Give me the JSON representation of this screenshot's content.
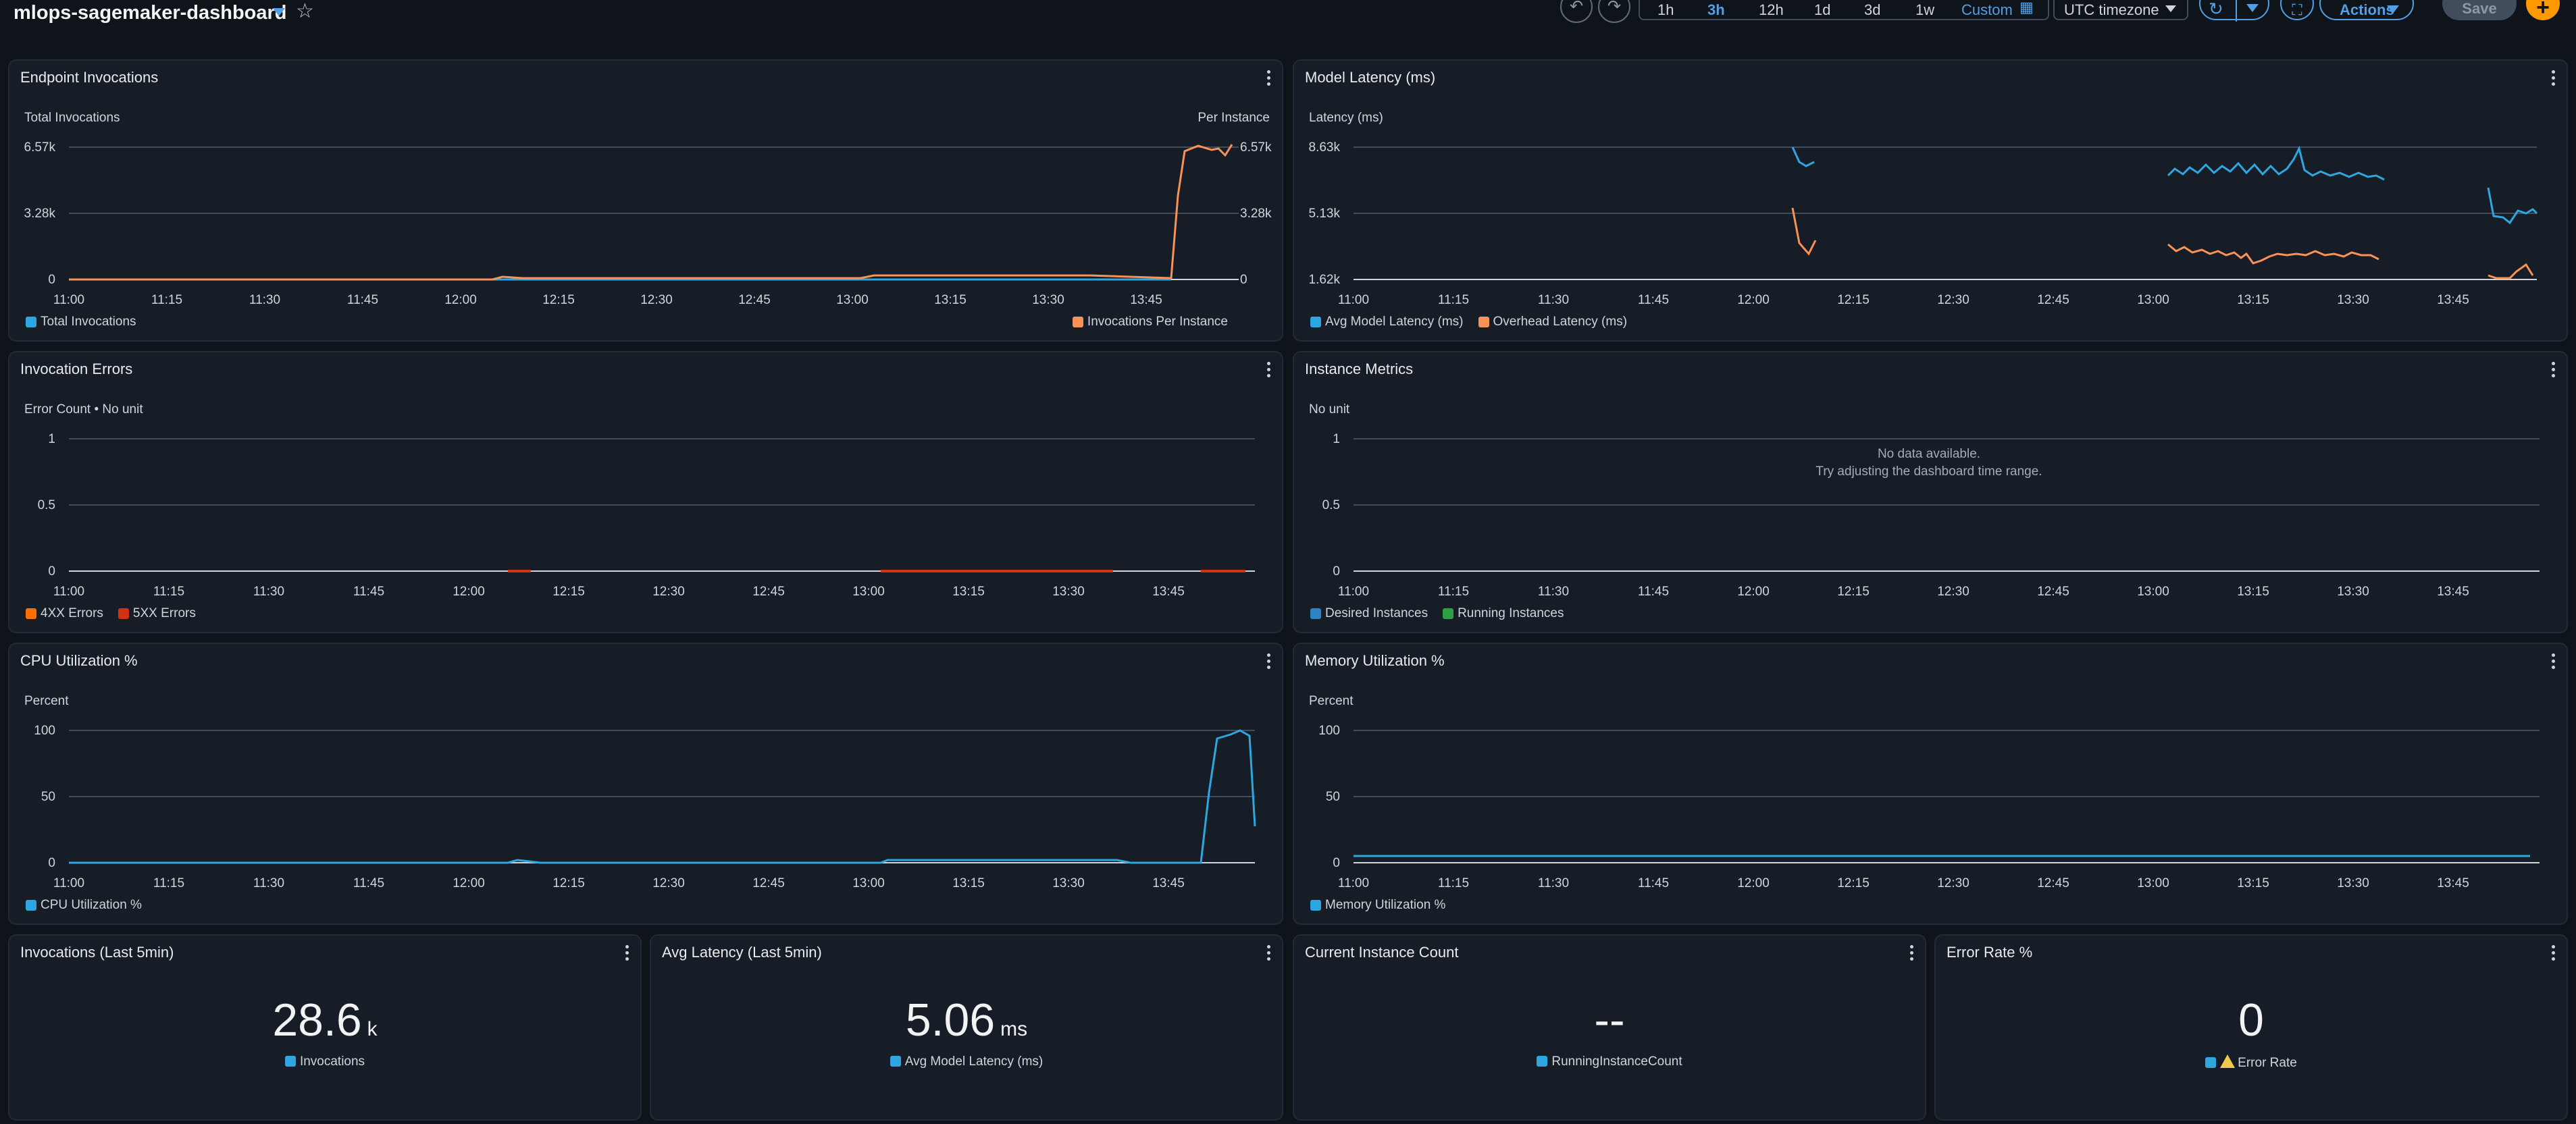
{
  "header": {
    "dashboard_title": "mlops-sagemaker-dashboard",
    "time_ranges": [
      "1h",
      "3h",
      "12h",
      "1d",
      "3d",
      "1w"
    ],
    "active_range": "3h",
    "custom_label": "Custom",
    "timezone": "UTC timezone",
    "actions_label": "Actions",
    "save_label": "Save",
    "add_label": "+"
  },
  "x_ticks": [
    "11:00",
    "11:15",
    "11:30",
    "11:45",
    "12:00",
    "12:15",
    "12:30",
    "12:45",
    "13:00",
    "13:15",
    "13:30",
    "13:45"
  ],
  "panels": {
    "invocations": {
      "title": "Endpoint Invocations",
      "left_unit": "Total Invocations",
      "right_unit": "Per Instance",
      "y_ticks": [
        "6.57k",
        "3.28k",
        "0"
      ],
      "right_ticks": [
        "6.57k",
        "3.28k",
        "0"
      ],
      "legend": [
        "Total Invocations",
        "Invocations Per Instance"
      ]
    },
    "latency": {
      "title": "Model Latency (ms)",
      "left_unit": "Latency (ms)",
      "y_ticks": [
        "8.63k",
        "5.13k",
        "1.62k"
      ],
      "legend": [
        "Avg Model Latency (ms)",
        "Overhead Latency (ms)"
      ]
    },
    "errors": {
      "title": "Invocation Errors",
      "left_unit": "Error Count • No unit",
      "y_ticks": [
        "1",
        "0.5",
        "0"
      ],
      "legend": [
        "4XX Errors",
        "5XX Errors"
      ]
    },
    "instances": {
      "title": "Instance Metrics",
      "left_unit": "No unit",
      "y_ticks": [
        "1",
        "0.5",
        "0"
      ],
      "no_data_line1": "No data available.",
      "no_data_line2": "Try adjusting the dashboard time range.",
      "legend": [
        "Desired Instances",
        "Running Instances"
      ]
    },
    "cpu": {
      "title": "CPU Utilization %",
      "left_unit": "Percent",
      "y_ticks": [
        "100",
        "50",
        "0"
      ],
      "legend": [
        "CPU Utilization %"
      ]
    },
    "memory": {
      "title": "Memory Utilization %",
      "left_unit": "Percent",
      "y_ticks": [
        "100",
        "50",
        "0"
      ],
      "legend": [
        "Memory Utilization %"
      ]
    },
    "kpi_invocations": {
      "title": "Invocations (Last 5min)",
      "value": "28.6",
      "unit": "k",
      "legend": "Invocations"
    },
    "kpi_latency": {
      "title": "Avg Latency (Last 5min)",
      "value": "5.06",
      "unit": "ms",
      "legend": "Avg Model Latency (ms)"
    },
    "kpi_instances": {
      "title": "Current Instance Count",
      "value": "--",
      "unit": "",
      "legend": "RunningInstanceCount"
    },
    "kpi_errors": {
      "title": "Error Rate %",
      "value": "0",
      "unit": "",
      "legend": "Error Rate"
    }
  },
  "colors": {
    "blue": "#2ea7e0",
    "orange": "#f89256",
    "orange2": "#fe6e00",
    "red": "#d13212",
    "green": "#2ea043",
    "navy": "#3184c2"
  }
}
